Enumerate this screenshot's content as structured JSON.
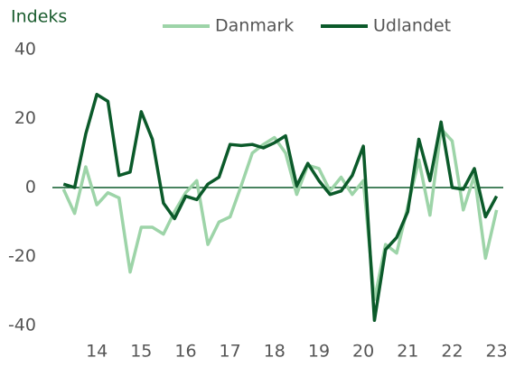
{
  "chart_data": {
    "type": "line",
    "title": "Indeks",
    "x": [
      2013.25,
      2013.5,
      2013.75,
      2014,
      2014.25,
      2014.5,
      2014.75,
      2015,
      2015.25,
      2015.5,
      2015.75,
      2016,
      2016.25,
      2016.5,
      2016.75,
      2017,
      2017.25,
      2017.5,
      2017.75,
      2018,
      2018.25,
      2018.5,
      2018.75,
      2019,
      2019.25,
      2019.5,
      2019.75,
      2020,
      2020.25,
      2020.5,
      2020.75,
      2021,
      2021.25,
      2021.5,
      2021.75,
      2022,
      2022.25,
      2022.5,
      2022.75,
      2023
    ],
    "series": [
      {
        "name": "Danmark",
        "color": "#9dd4a8",
        "values": [
          -0.5,
          -7.5,
          6,
          -5,
          -1.5,
          -3,
          -24.5,
          -11.5,
          -11.5,
          -13.5,
          -7,
          -1.5,
          2,
          -16.5,
          -10,
          -8.5,
          0.5,
          10,
          12.5,
          14.5,
          10,
          -2,
          6.5,
          5.5,
          -1,
          3,
          -2,
          2,
          -32.5,
          -16.5,
          -19,
          -5.5,
          8,
          -8,
          17,
          13.5,
          -6.5,
          3.5,
          -20.5,
          -6.5
        ]
      },
      {
        "name": "Udlandet",
        "color": "#0b5a2a",
        "values": [
          1,
          0,
          15.5,
          27,
          25,
          3.5,
          4.5,
          22,
          14,
          -4.5,
          -9,
          -2.5,
          -3.5,
          1,
          3,
          12.5,
          12.2,
          12.5,
          11.5,
          13,
          15,
          0.5,
          7,
          2,
          -2,
          -1,
          3.5,
          12,
          -38.5,
          -18,
          -14.5,
          -7,
          14,
          2,
          19,
          0,
          -0.5,
          5.5,
          -8.5,
          -2.5
        ]
      }
    ],
    "xlim": [
      2013,
      2023.15
    ],
    "xticks": [
      {
        "value": 2014,
        "label": "14"
      },
      {
        "value": 2015,
        "label": "15"
      },
      {
        "value": 2016,
        "label": "16"
      },
      {
        "value": 2017,
        "label": "17"
      },
      {
        "value": 2018,
        "label": "18"
      },
      {
        "value": 2019,
        "label": "19"
      },
      {
        "value": 2020,
        "label": "20"
      },
      {
        "value": 2021,
        "label": "21"
      },
      {
        "value": 2022,
        "label": "22"
      },
      {
        "value": 2023,
        "label": "23"
      }
    ],
    "ylim": [
      -40,
      40
    ],
    "yticks": [
      40,
      20,
      0,
      -20,
      -40
    ],
    "grid": false,
    "legend": "top"
  }
}
